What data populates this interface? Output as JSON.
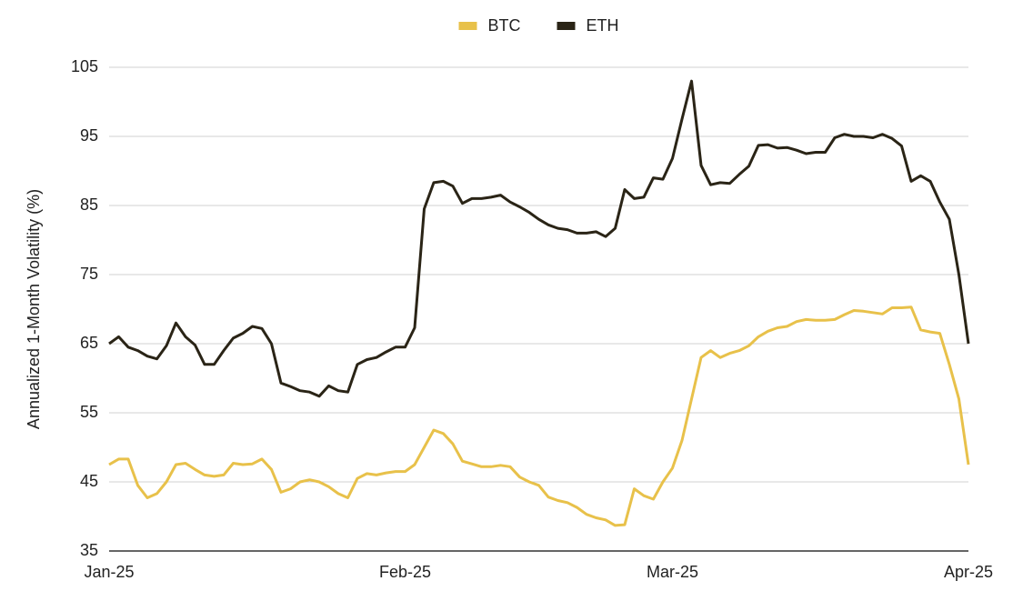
{
  "chart_data": {
    "type": "line",
    "y_label": "Annualized 1-Month Volatility (%)",
    "categories": [
      "Jan-25",
      null,
      null,
      null,
      null,
      null,
      null,
      null,
      null,
      null,
      null,
      null,
      null,
      null,
      null,
      null,
      null,
      null,
      null,
      null,
      null,
      null,
      null,
      null,
      null,
      null,
      null,
      null,
      null,
      null,
      null,
      "Feb-25",
      null,
      null,
      null,
      null,
      null,
      null,
      null,
      null,
      null,
      null,
      null,
      null,
      null,
      null,
      null,
      null,
      null,
      null,
      null,
      null,
      null,
      null,
      null,
      null,
      null,
      null,
      null,
      "Mar-25",
      null,
      null,
      null,
      null,
      null,
      null,
      null,
      null,
      null,
      null,
      null,
      null,
      null,
      null,
      null,
      null,
      null,
      null,
      null,
      null,
      null,
      null,
      null,
      null,
      null,
      null,
      null,
      null,
      null,
      null,
      "Apr-25"
    ],
    "series": [
      {
        "name": "BTC",
        "color": "#e8c14a",
        "values": [
          47.5,
          48.3,
          48.3,
          44.5,
          42.7,
          43.3,
          45,
          47.5,
          47.7,
          46.8,
          46,
          45.8,
          46,
          47.7,
          47.5,
          47.6,
          48.3,
          46.8,
          43.5,
          44,
          45,
          45.3,
          45,
          44.3,
          43.3,
          42.7,
          45.5,
          46.2,
          46,
          46.3,
          46.5,
          46.5,
          47.5,
          50,
          52.5,
          52,
          50.5,
          48,
          47.6,
          47.2,
          47.2,
          47.4,
          47.2,
          45.7,
          45,
          44.5,
          42.8,
          42.3,
          42,
          41.3,
          40.3,
          39.8,
          39.5,
          38.7,
          38.8,
          44,
          43,
          42.5,
          45,
          47,
          51,
          57,
          63,
          64,
          63,
          63.6,
          64,
          64.7,
          66,
          66.8,
          67.3,
          67.5,
          68.2,
          68.5,
          68.4,
          68.4,
          68.5,
          69.2,
          69.8,
          69.7,
          69.5,
          69.3,
          70.2,
          70.2,
          70.3,
          67,
          66.7,
          66.5,
          62,
          57,
          47.5
        ]
      },
      {
        "name": "ETH",
        "color": "#2a2416",
        "values": [
          65,
          66,
          64.5,
          64,
          63.2,
          62.8,
          64.7,
          68,
          66,
          64.8,
          62,
          62,
          64,
          65.8,
          66.5,
          67.5,
          67.2,
          65,
          59.3,
          58.8,
          58.2,
          58,
          57.4,
          58.9,
          58.2,
          58,
          62,
          62.7,
          63,
          63.8,
          64.5,
          64.5,
          67.3,
          84.5,
          88.3,
          88.5,
          87.8,
          85.3,
          86,
          86,
          86.2,
          86.5,
          85.5,
          84.8,
          84,
          83,
          82.2,
          81.7,
          81.5,
          81,
          81,
          81.2,
          80.5,
          81.7,
          87.3,
          86,
          86.2,
          89,
          88.8,
          91.8,
          97.5,
          103,
          90.8,
          88,
          88.3,
          88.2,
          89.5,
          90.7,
          93.7,
          93.8,
          93.3,
          93.4,
          93,
          92.5,
          92.7,
          92.7,
          94.8,
          95.3,
          95,
          95,
          94.8,
          95.3,
          94.7,
          93.6,
          88.5,
          89.3,
          88.5,
          85.5,
          83,
          75,
          65
        ]
      }
    ],
    "ylim": [
      35,
      105
    ],
    "yticks": [
      35,
      45,
      55,
      65,
      75,
      85,
      95,
      105
    ],
    "grid": true,
    "legend": "top"
  }
}
